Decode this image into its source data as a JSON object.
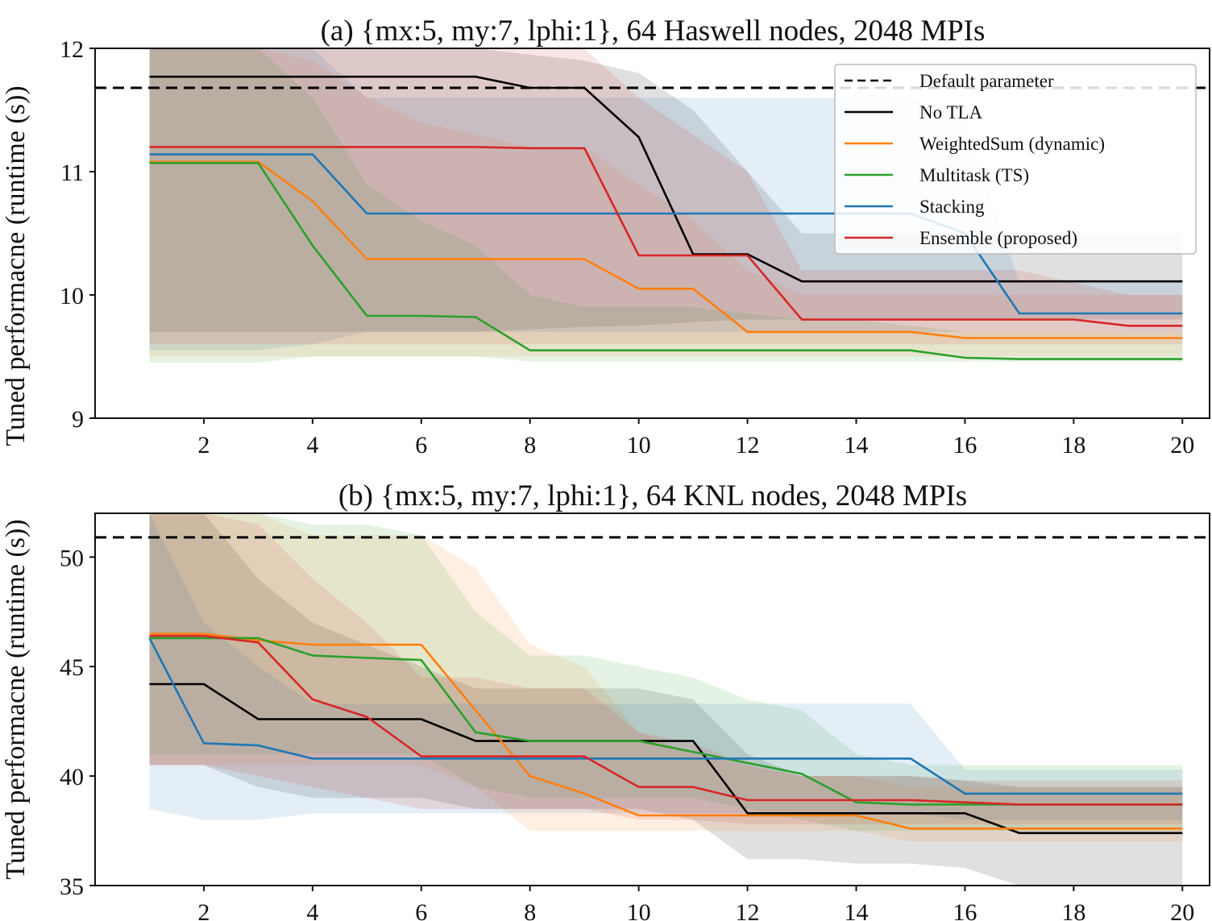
{
  "colors": {
    "default": "#000000",
    "no_tla": "#000000",
    "weightedsum": "#ff7f0e",
    "multitask": "#2ca02c",
    "stacking": "#1f77b4",
    "ensemble": "#d62728"
  },
  "chart_data": [
    {
      "type": "line",
      "title": "(a) {mx:5, my:7, lphi:1}, 64 Haswell nodes, 2048 MPIs",
      "ylabel": "Tuned performacne (runtime (s))",
      "xlabel": "",
      "xlim": [
        0.0,
        20.5
      ],
      "ylim": [
        9,
        12
      ],
      "xticks": [
        2,
        4,
        6,
        8,
        10,
        12,
        14,
        16,
        18,
        20
      ],
      "yticks": [
        9,
        10,
        11,
        12
      ],
      "legend_position": "top-right",
      "legend": [
        "Default parameter",
        "No TLA",
        "WeightedSum (dynamic)",
        "Multitask (TS)",
        "Stacking",
        "Ensemble (proposed)"
      ],
      "default_parameter": 11.68,
      "x": [
        1,
        2,
        3,
        4,
        5,
        6,
        7,
        8,
        9,
        10,
        11,
        12,
        13,
        14,
        15,
        16,
        17,
        18,
        19,
        20
      ],
      "series": [
        {
          "name": "No TLA",
          "color": "#000000",
          "values": [
            11.77,
            11.77,
            11.77,
            11.77,
            11.77,
            11.77,
            11.77,
            11.68,
            11.68,
            11.28,
            10.33,
            10.33,
            10.11,
            10.11,
            10.11,
            10.11,
            10.11,
            10.11,
            10.11,
            10.11
          ],
          "band_lower": [
            9.7,
            9.7,
            9.7,
            9.7,
            9.7,
            9.7,
            9.7,
            9.72,
            9.74,
            9.75,
            9.78,
            9.8,
            9.8,
            9.8,
            9.8,
            9.8,
            9.8,
            9.8,
            9.8,
            9.8
          ],
          "band_upper": [
            12.0,
            12.0,
            12.0,
            12.0,
            12.0,
            12.0,
            12.0,
            11.95,
            11.9,
            11.8,
            11.5,
            11.0,
            10.5,
            10.5,
            10.5,
            10.5,
            10.5,
            10.5,
            10.5,
            10.5
          ]
        },
        {
          "name": "WeightedSum (dynamic)",
          "color": "#ff7f0e",
          "values": [
            11.08,
            11.08,
            11.08,
            10.76,
            10.29,
            10.29,
            10.29,
            10.29,
            10.29,
            10.05,
            10.05,
            9.7,
            9.7,
            9.7,
            9.7,
            9.65,
            9.65,
            9.65,
            9.65,
            9.65
          ],
          "band_lower": [
            9.5,
            9.5,
            9.5,
            9.5,
            9.5,
            9.5,
            9.5,
            9.5,
            9.5,
            9.5,
            9.5,
            9.5,
            9.5,
            9.5,
            9.5,
            9.5,
            9.5,
            9.5,
            9.5,
            9.5
          ],
          "band_upper": [
            12.0,
            12.0,
            12.0,
            11.9,
            11.6,
            11.4,
            11.3,
            11.2,
            11.2,
            10.9,
            10.6,
            10.2,
            10.0,
            10.0,
            10.0,
            10.0,
            10.0,
            10.0,
            10.0,
            10.0
          ]
        },
        {
          "name": "Multitask (TS)",
          "color": "#2ca02c",
          "values": [
            11.07,
            11.07,
            11.07,
            10.4,
            9.83,
            9.83,
            9.82,
            9.55,
            9.55,
            9.55,
            9.55,
            9.55,
            9.55,
            9.55,
            9.55,
            9.49,
            9.48,
            9.48,
            9.48,
            9.48
          ],
          "band_lower": [
            9.45,
            9.45,
            9.45,
            9.5,
            9.5,
            9.5,
            9.5,
            9.46,
            9.46,
            9.46,
            9.46,
            9.46,
            9.46,
            9.46,
            9.46,
            9.46,
            9.46,
            9.46,
            9.46,
            9.46
          ],
          "band_upper": [
            12.0,
            12.0,
            12.0,
            11.6,
            10.9,
            10.6,
            10.4,
            10.0,
            9.9,
            9.9,
            9.9,
            9.85,
            9.8,
            9.8,
            9.75,
            9.7,
            9.7,
            9.7,
            9.7,
            9.7
          ]
        },
        {
          "name": "Stacking",
          "color": "#1f77b4",
          "values": [
            11.14,
            11.14,
            11.14,
            11.14,
            10.66,
            10.66,
            10.66,
            10.66,
            10.66,
            10.66,
            10.66,
            10.66,
            10.66,
            10.66,
            10.66,
            10.5,
            9.85,
            9.85,
            9.85,
            9.85
          ],
          "band_lower": [
            9.55,
            9.55,
            9.55,
            9.6,
            9.7,
            9.7,
            9.7,
            9.7,
            9.7,
            9.7,
            9.7,
            9.7,
            9.7,
            9.7,
            9.7,
            9.7,
            9.7,
            9.7,
            9.7,
            9.7
          ],
          "band_upper": [
            12.0,
            12.0,
            12.0,
            12.0,
            11.6,
            11.6,
            11.6,
            11.6,
            11.6,
            11.6,
            11.6,
            11.6,
            11.6,
            11.6,
            11.6,
            11.4,
            10.1,
            10.1,
            10.1,
            10.1
          ]
        },
        {
          "name": "Ensemble (proposed)",
          "color": "#d62728",
          "values": [
            11.2,
            11.2,
            11.2,
            11.2,
            11.2,
            11.2,
            11.2,
            11.19,
            11.19,
            10.32,
            10.32,
            10.32,
            9.8,
            9.8,
            9.8,
            9.8,
            9.8,
            9.8,
            9.75,
            9.75
          ],
          "band_lower": [
            9.6,
            9.6,
            9.6,
            9.6,
            9.6,
            9.6,
            9.6,
            9.6,
            9.6,
            9.6,
            9.6,
            9.6,
            9.6,
            9.6,
            9.6,
            9.6,
            9.6,
            9.6,
            9.6,
            9.6
          ],
          "band_upper": [
            12.0,
            12.0,
            12.0,
            12.0,
            12.0,
            12.0,
            12.0,
            12.0,
            12.0,
            11.6,
            11.3,
            11.0,
            10.2,
            10.2,
            10.2,
            10.2,
            10.2,
            10.1,
            10.0,
            10.0
          ]
        }
      ]
    },
    {
      "type": "line",
      "title": "(b) {mx:5, my:7, lphi:1}, 64 KNL nodes, 2048 MPIs",
      "ylabel": "Tuned performacne (runtime (s))",
      "xlabel": "",
      "xlim": [
        0.0,
        20.5
      ],
      "ylim": [
        35,
        52
      ],
      "xticks": [
        2,
        4,
        6,
        8,
        10,
        12,
        14,
        16,
        18,
        20
      ],
      "yticks": [
        35,
        40,
        45,
        50
      ],
      "default_parameter": 50.9,
      "x": [
        1,
        2,
        3,
        4,
        5,
        6,
        7,
        8,
        9,
        10,
        11,
        12,
        13,
        14,
        15,
        16,
        17,
        18,
        19,
        20
      ],
      "series": [
        {
          "name": "No TLA",
          "color": "#000000",
          "values": [
            44.2,
            44.2,
            42.6,
            42.6,
            42.6,
            42.6,
            41.6,
            41.6,
            41.6,
            41.6,
            41.6,
            38.3,
            38.3,
            38.3,
            38.3,
            38.3,
            37.4,
            37.4,
            37.4,
            37.4
          ],
          "band_lower": [
            40.5,
            40.5,
            39.5,
            39.0,
            39.0,
            39.0,
            38.5,
            38.5,
            38.5,
            38.5,
            38.0,
            36.2,
            36.2,
            36.0,
            36.0,
            35.8,
            35.0,
            35.0,
            35.0,
            35.0
          ],
          "band_upper": [
            52.0,
            52.0,
            49.0,
            47.0,
            46.0,
            45.0,
            44.0,
            44.0,
            44.0,
            44.0,
            43.5,
            41.0,
            40.0,
            40.0,
            40.0,
            39.8,
            39.5,
            39.5,
            39.5,
            39.5
          ]
        },
        {
          "name": "WeightedSum (dynamic)",
          "color": "#ff7f0e",
          "values": [
            46.5,
            46.5,
            46.2,
            46.0,
            46.0,
            46.0,
            43.0,
            40.0,
            39.2,
            38.2,
            38.2,
            38.2,
            38.2,
            38.2,
            37.6,
            37.6,
            37.6,
            37.6,
            37.6,
            37.6
          ],
          "band_lower": [
            40.5,
            40.5,
            40.5,
            40.5,
            40.5,
            40.5,
            39.5,
            37.5,
            37.5,
            37.5,
            37.5,
            37.5,
            37.5,
            37.5,
            37.0,
            37.0,
            37.0,
            37.0,
            37.0,
            37.0
          ],
          "band_upper": [
            52.0,
            52.0,
            52.0,
            51.0,
            51.0,
            51.0,
            49.5,
            46.0,
            45.0,
            42.0,
            41.0,
            40.5,
            40.0,
            40.0,
            39.5,
            39.5,
            39.5,
            39.5,
            39.5,
            39.5
          ]
        },
        {
          "name": "Multitask (TS)",
          "color": "#2ca02c",
          "values": [
            46.3,
            46.3,
            46.3,
            45.5,
            45.4,
            45.3,
            42.0,
            41.6,
            41.6,
            41.6,
            41.1,
            40.6,
            40.1,
            38.8,
            38.7,
            38.7,
            38.7,
            38.7,
            38.7,
            38.7
          ],
          "band_lower": [
            41.0,
            41.0,
            41.0,
            41.0,
            41.0,
            41.0,
            39.5,
            39.0,
            39.0,
            39.0,
            39.0,
            38.5,
            38.0,
            37.5,
            37.5,
            37.5,
            37.5,
            37.5,
            37.5,
            37.5
          ],
          "band_upper": [
            52.0,
            52.0,
            52.0,
            51.5,
            51.5,
            51.0,
            47.5,
            45.5,
            45.5,
            45.0,
            44.5,
            43.5,
            43.0,
            41.0,
            40.5,
            40.5,
            40.5,
            40.5,
            40.5,
            40.5
          ]
        },
        {
          "name": "Stacking",
          "color": "#1f77b4",
          "values": [
            46.3,
            41.5,
            41.4,
            40.8,
            40.8,
            40.8,
            40.8,
            40.8,
            40.8,
            40.8,
            40.8,
            40.8,
            40.8,
            40.8,
            40.8,
            39.2,
            39.2,
            39.2,
            39.2,
            39.2
          ],
          "band_lower": [
            38.5,
            38.0,
            38.0,
            38.3,
            38.3,
            38.3,
            38.3,
            38.3,
            38.3,
            38.3,
            38.3,
            38.3,
            38.3,
            38.3,
            38.3,
            38.0,
            38.0,
            38.0,
            38.0,
            38.0
          ],
          "band_upper": [
            52.0,
            47.0,
            45.0,
            43.3,
            43.3,
            43.3,
            43.3,
            43.3,
            43.3,
            43.3,
            43.3,
            43.3,
            43.3,
            43.3,
            43.3,
            40.3,
            40.3,
            40.3,
            40.3,
            40.3
          ]
        },
        {
          "name": "Ensemble (proposed)",
          "color": "#d62728",
          "values": [
            46.4,
            46.4,
            46.1,
            43.5,
            42.7,
            40.9,
            40.9,
            40.9,
            40.9,
            39.5,
            39.5,
            38.9,
            38.9,
            38.9,
            38.9,
            38.8,
            38.7,
            38.7,
            38.7,
            38.7
          ],
          "band_lower": [
            40.5,
            40.5,
            40.0,
            39.5,
            39.0,
            38.5,
            38.5,
            38.5,
            38.5,
            38.0,
            38.0,
            37.8,
            37.8,
            37.8,
            37.8,
            37.8,
            37.8,
            37.8,
            37.8,
            37.8
          ],
          "band_upper": [
            52.0,
            52.0,
            51.5,
            49.0,
            47.0,
            44.5,
            44.5,
            44.0,
            44.0,
            42.0,
            41.5,
            40.5,
            40.0,
            40.0,
            40.0,
            39.8,
            39.8,
            39.8,
            39.8,
            39.8
          ]
        }
      ]
    }
  ]
}
